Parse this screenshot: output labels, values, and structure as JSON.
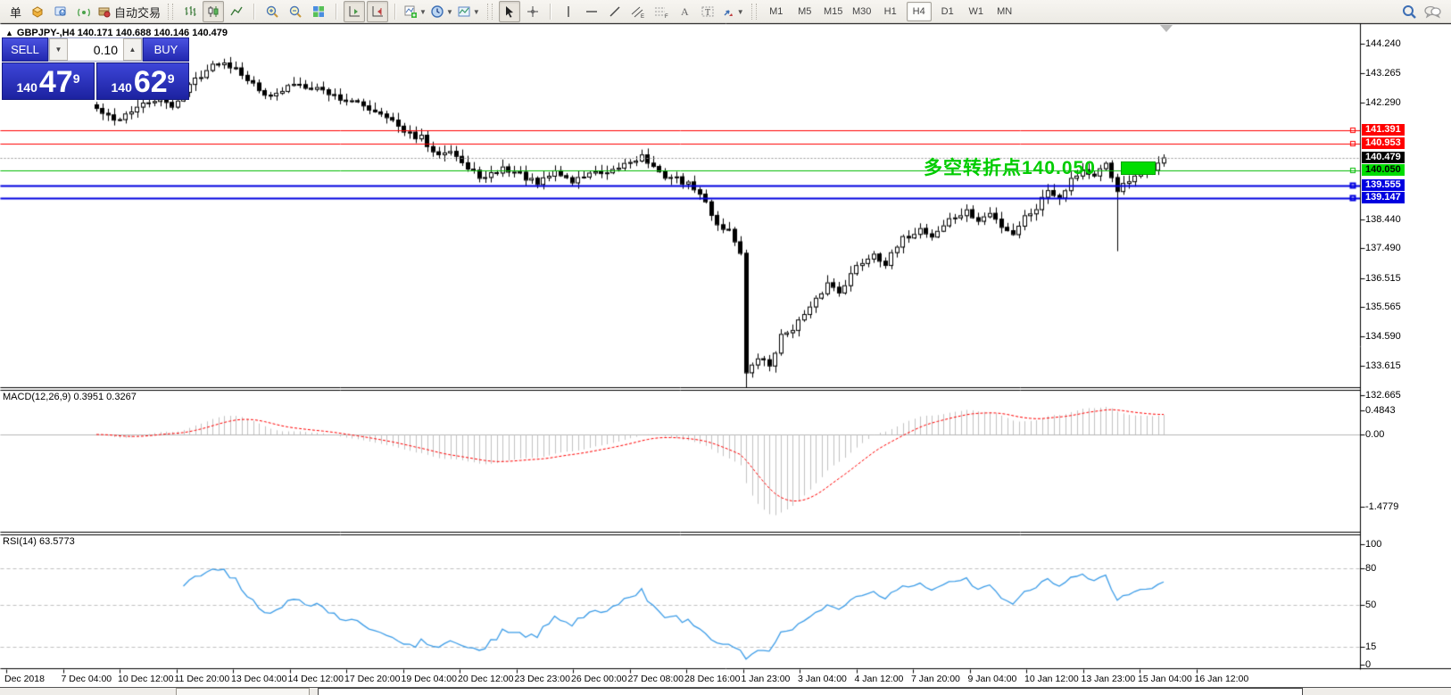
{
  "toolbar": {
    "new_order_label": "单",
    "autotrading_label": "自动交易",
    "timeframes": [
      "M1",
      "M5",
      "M15",
      "M30",
      "H1",
      "H4",
      "D1",
      "W1",
      "MN"
    ],
    "active_timeframe": "H4"
  },
  "chart": {
    "title": "GBPJPY-,H4 140.171 140.688 140.146 140.479",
    "symbol": "GBPJPY-",
    "timeframe": "H4",
    "open": "140.171",
    "high": "140.688",
    "low": "140.146",
    "close": "140.479",
    "y_ticks": [
      {
        "t": "144.240",
        "v": 144.24
      },
      {
        "t": "143.265",
        "v": 143.265
      },
      {
        "t": "142.290",
        "v": 142.29
      },
      {
        "t": "138.440",
        "v": 138.44
      },
      {
        "t": "137.490",
        "v": 137.49
      },
      {
        "t": "136.515",
        "v": 136.515
      },
      {
        "t": "135.565",
        "v": 135.565
      },
      {
        "t": "134.590",
        "v": 134.59
      },
      {
        "t": "133.615",
        "v": 133.615
      },
      {
        "t": "132.665",
        "v": 132.665
      }
    ],
    "levels": [
      {
        "price": "141.391",
        "v": 141.391,
        "bg": "#ff0000",
        "fg": "#ffffff",
        "line": "#ff0000",
        "w": 1,
        "dash": false,
        "current": false
      },
      {
        "price": "140.953",
        "v": 140.953,
        "bg": "#ff0000",
        "fg": "#ffffff",
        "line": "#ff0000",
        "w": 1,
        "dash": false,
        "current": false
      },
      {
        "price": "140.479",
        "v": 140.479,
        "bg": "#000000",
        "fg": "#ffffff",
        "line": "#9a9a9a",
        "w": 1,
        "dash": true,
        "current": true
      },
      {
        "price": "140.050",
        "v": 140.05,
        "bg": "#00dd00",
        "fg": "#000000",
        "line": "#00bb00",
        "w": 1,
        "dash": false,
        "current": false
      },
      {
        "price": "139.555",
        "v": 139.555,
        "bg": "#0000e0",
        "fg": "#ffffff",
        "line": "#0000e0",
        "w": 2,
        "dash": false,
        "current": false
      },
      {
        "price": "139.147",
        "v": 139.147,
        "bg": "#0000e0",
        "fg": "#ffffff",
        "line": "#0000e0",
        "w": 2,
        "dash": false,
        "current": false
      }
    ],
    "annotation": {
      "text": "多空转折点140.050",
      "color": "#00cc00"
    },
    "x_labels": [
      "Dec 2018",
      "7 Dec 04:00",
      "10 Dec 12:00",
      "11 Dec 20:00",
      "13 Dec 04:00",
      "14 Dec 12:00",
      "17 Dec 20:00",
      "19 Dec 04:00",
      "20 Dec 12:00",
      "23 Dec 23:00",
      "26 Dec 00:00",
      "27 Dec 08:00",
      "28 Dec 16:00",
      "1 Jan 23:00",
      "3 Jan 04:00",
      "4 Jan 12:00",
      "7 Jan 20:00",
      "9 Jan 04:00",
      "10 Jan 12:00",
      "13 Jan 23:00",
      "15 Jan 04:00",
      "16 Jan 12:00"
    ]
  },
  "trade_panel": {
    "sell": "SELL",
    "buy": "BUY",
    "lot": "0.10",
    "bid_small": "140",
    "bid_big": "47",
    "bid_sup": "9",
    "ask_small": "140",
    "ask_big": "62",
    "ask_sup": "9"
  },
  "macd": {
    "label": "MACD(12,26,9) 0.3951 0.3267",
    "main_value": "0.3951",
    "signal_value": "0.3267",
    "axis": [
      {
        "t": "0.4843",
        "v": 0.4843
      },
      {
        "t": "0.00",
        "v": 0
      },
      {
        "t": "-1.4779",
        "v": -1.4779
      }
    ]
  },
  "rsi": {
    "label": "RSI(14) 63.5773",
    "value": "63.5773",
    "axis": [
      {
        "t": "100",
        "v": 100
      },
      {
        "t": "80",
        "v": 80
      },
      {
        "t": "50",
        "v": 50
      },
      {
        "t": "15",
        "v": 15
      },
      {
        "t": "0",
        "v": 0
      }
    ],
    "levels": [
      80,
      50,
      15
    ]
  },
  "chart_data": {
    "type": "candlestick",
    "symbol": "GBPJPY-",
    "timeframe": "H4",
    "count": 185,
    "seed": 42,
    "close_path": [
      [
        0,
        142.1
      ],
      [
        3,
        141.7
      ],
      [
        6,
        142.05
      ],
      [
        10,
        142.4
      ],
      [
        13,
        142.2
      ],
      [
        17,
        143.1
      ],
      [
        21,
        143.65
      ],
      [
        24,
        143.5
      ],
      [
        28,
        142.7
      ],
      [
        31,
        142.55
      ],
      [
        34,
        142.95
      ],
      [
        38,
        142.8
      ],
      [
        42,
        142.45
      ],
      [
        46,
        142.2
      ],
      [
        50,
        141.9
      ],
      [
        53,
        141.3
      ],
      [
        56,
        141.15
      ],
      [
        58,
        140.6
      ],
      [
        61,
        140.8
      ],
      [
        64,
        140.1
      ],
      [
        67,
        139.8
      ],
      [
        70,
        140.15
      ],
      [
        73,
        139.95
      ],
      [
        76,
        139.6
      ],
      [
        79,
        140.05
      ],
      [
        82,
        139.7
      ],
      [
        85,
        140.0
      ],
      [
        88,
        139.9
      ],
      [
        91,
        140.3
      ],
      [
        94,
        140.55
      ],
      [
        97,
        139.95
      ],
      [
        100,
        139.8
      ],
      [
        103,
        139.5
      ],
      [
        105,
        139.0
      ],
      [
        107,
        138.3
      ],
      [
        109,
        138.1
      ],
      [
        111,
        137.35
      ],
      [
        112,
        133.4
      ],
      [
        114,
        133.9
      ],
      [
        116,
        133.65
      ],
      [
        118,
        134.6
      ],
      [
        120,
        134.9
      ],
      [
        123,
        135.5
      ],
      [
        126,
        136.35
      ],
      [
        128,
        136.1
      ],
      [
        131,
        136.9
      ],
      [
        134,
        137.35
      ],
      [
        136,
        137.0
      ],
      [
        139,
        137.8
      ],
      [
        142,
        138.15
      ],
      [
        144,
        137.9
      ],
      [
        147,
        138.45
      ],
      [
        150,
        138.7
      ],
      [
        152,
        138.4
      ],
      [
        154,
        138.65
      ],
      [
        156,
        138.25
      ],
      [
        158,
        138.0
      ],
      [
        160,
        138.55
      ],
      [
        162,
        138.85
      ],
      [
        164,
        139.45
      ],
      [
        166,
        139.2
      ],
      [
        168,
        139.8
      ],
      [
        170,
        140.1
      ],
      [
        172,
        139.85
      ],
      [
        174,
        140.25
      ],
      [
        176,
        139.45
      ],
      [
        178,
        139.7
      ],
      [
        180,
        139.95
      ],
      [
        182,
        140.15
      ],
      [
        184,
        140.48
      ]
    ],
    "specials": {
      "112": {
        "h": 137.45,
        "l": 132.9,
        "c": 133.4
      },
      "176": {
        "l": 137.4
      }
    },
    "indicators": [
      {
        "name": "MACD",
        "params": [
          12,
          26,
          9
        ]
      },
      {
        "name": "RSI",
        "params": [
          14
        ]
      }
    ]
  },
  "colors": {
    "bull": "#ffffff",
    "bear": "#000000",
    "wick": "#000000",
    "macd_hist": "#c2c2c2",
    "macd_signal": "#ff0000",
    "rsi_line": "#3d9de8",
    "grid_dash": "#c0c0c0",
    "panel_blue": "#2a30c0",
    "label_red": "#ff0000",
    "label_blue": "#0000e0",
    "label_green": "#00dd00"
  }
}
